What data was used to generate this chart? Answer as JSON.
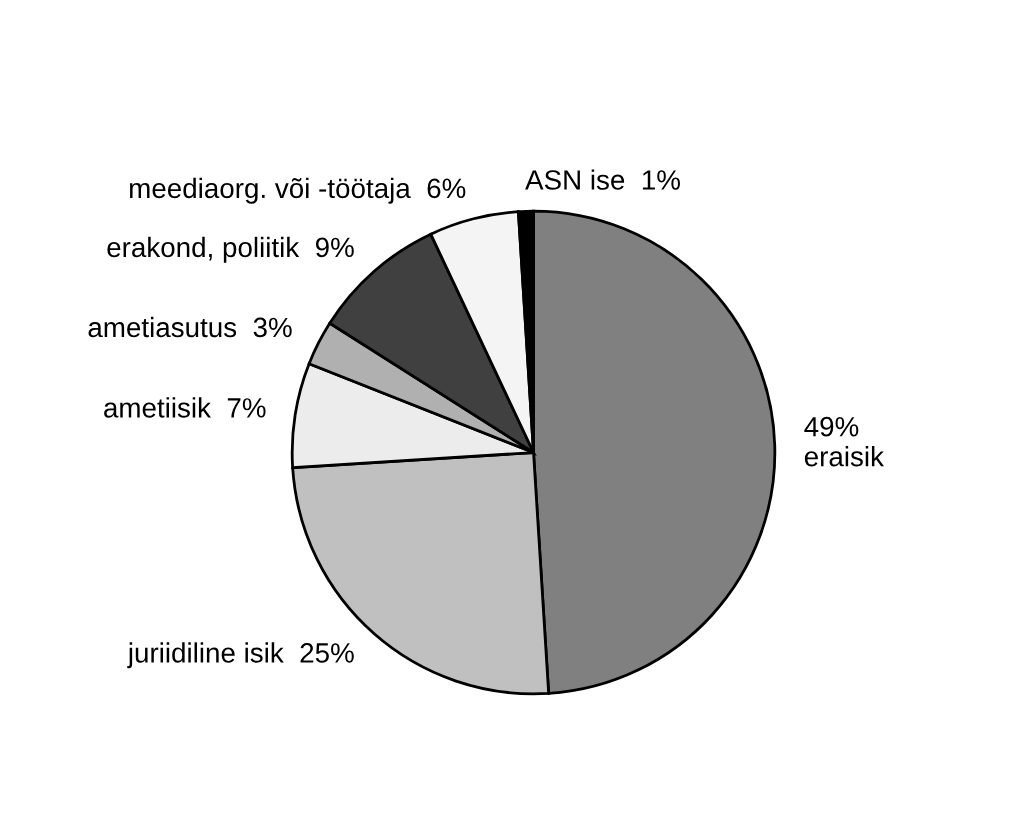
{
  "chart_data": {
    "type": "pie",
    "categories": [
      "eraisik",
      "juriidiline isik",
      "ametiisik",
      "ametiasutus",
      "erakond, poliitik",
      "meediaorg. või -töötaja",
      "ASN ise"
    ],
    "values": [
      49,
      25,
      7,
      3,
      9,
      6,
      1
    ],
    "value_labels": [
      "49%",
      "25%",
      "7%",
      "3%",
      "9%",
      "6%",
      "1%"
    ],
    "colors": [
      "#808080",
      "#c0c0c0",
      "#ececec",
      "#b0b0b0",
      "#404040",
      "#f4f4f4",
      "#000000"
    ]
  }
}
